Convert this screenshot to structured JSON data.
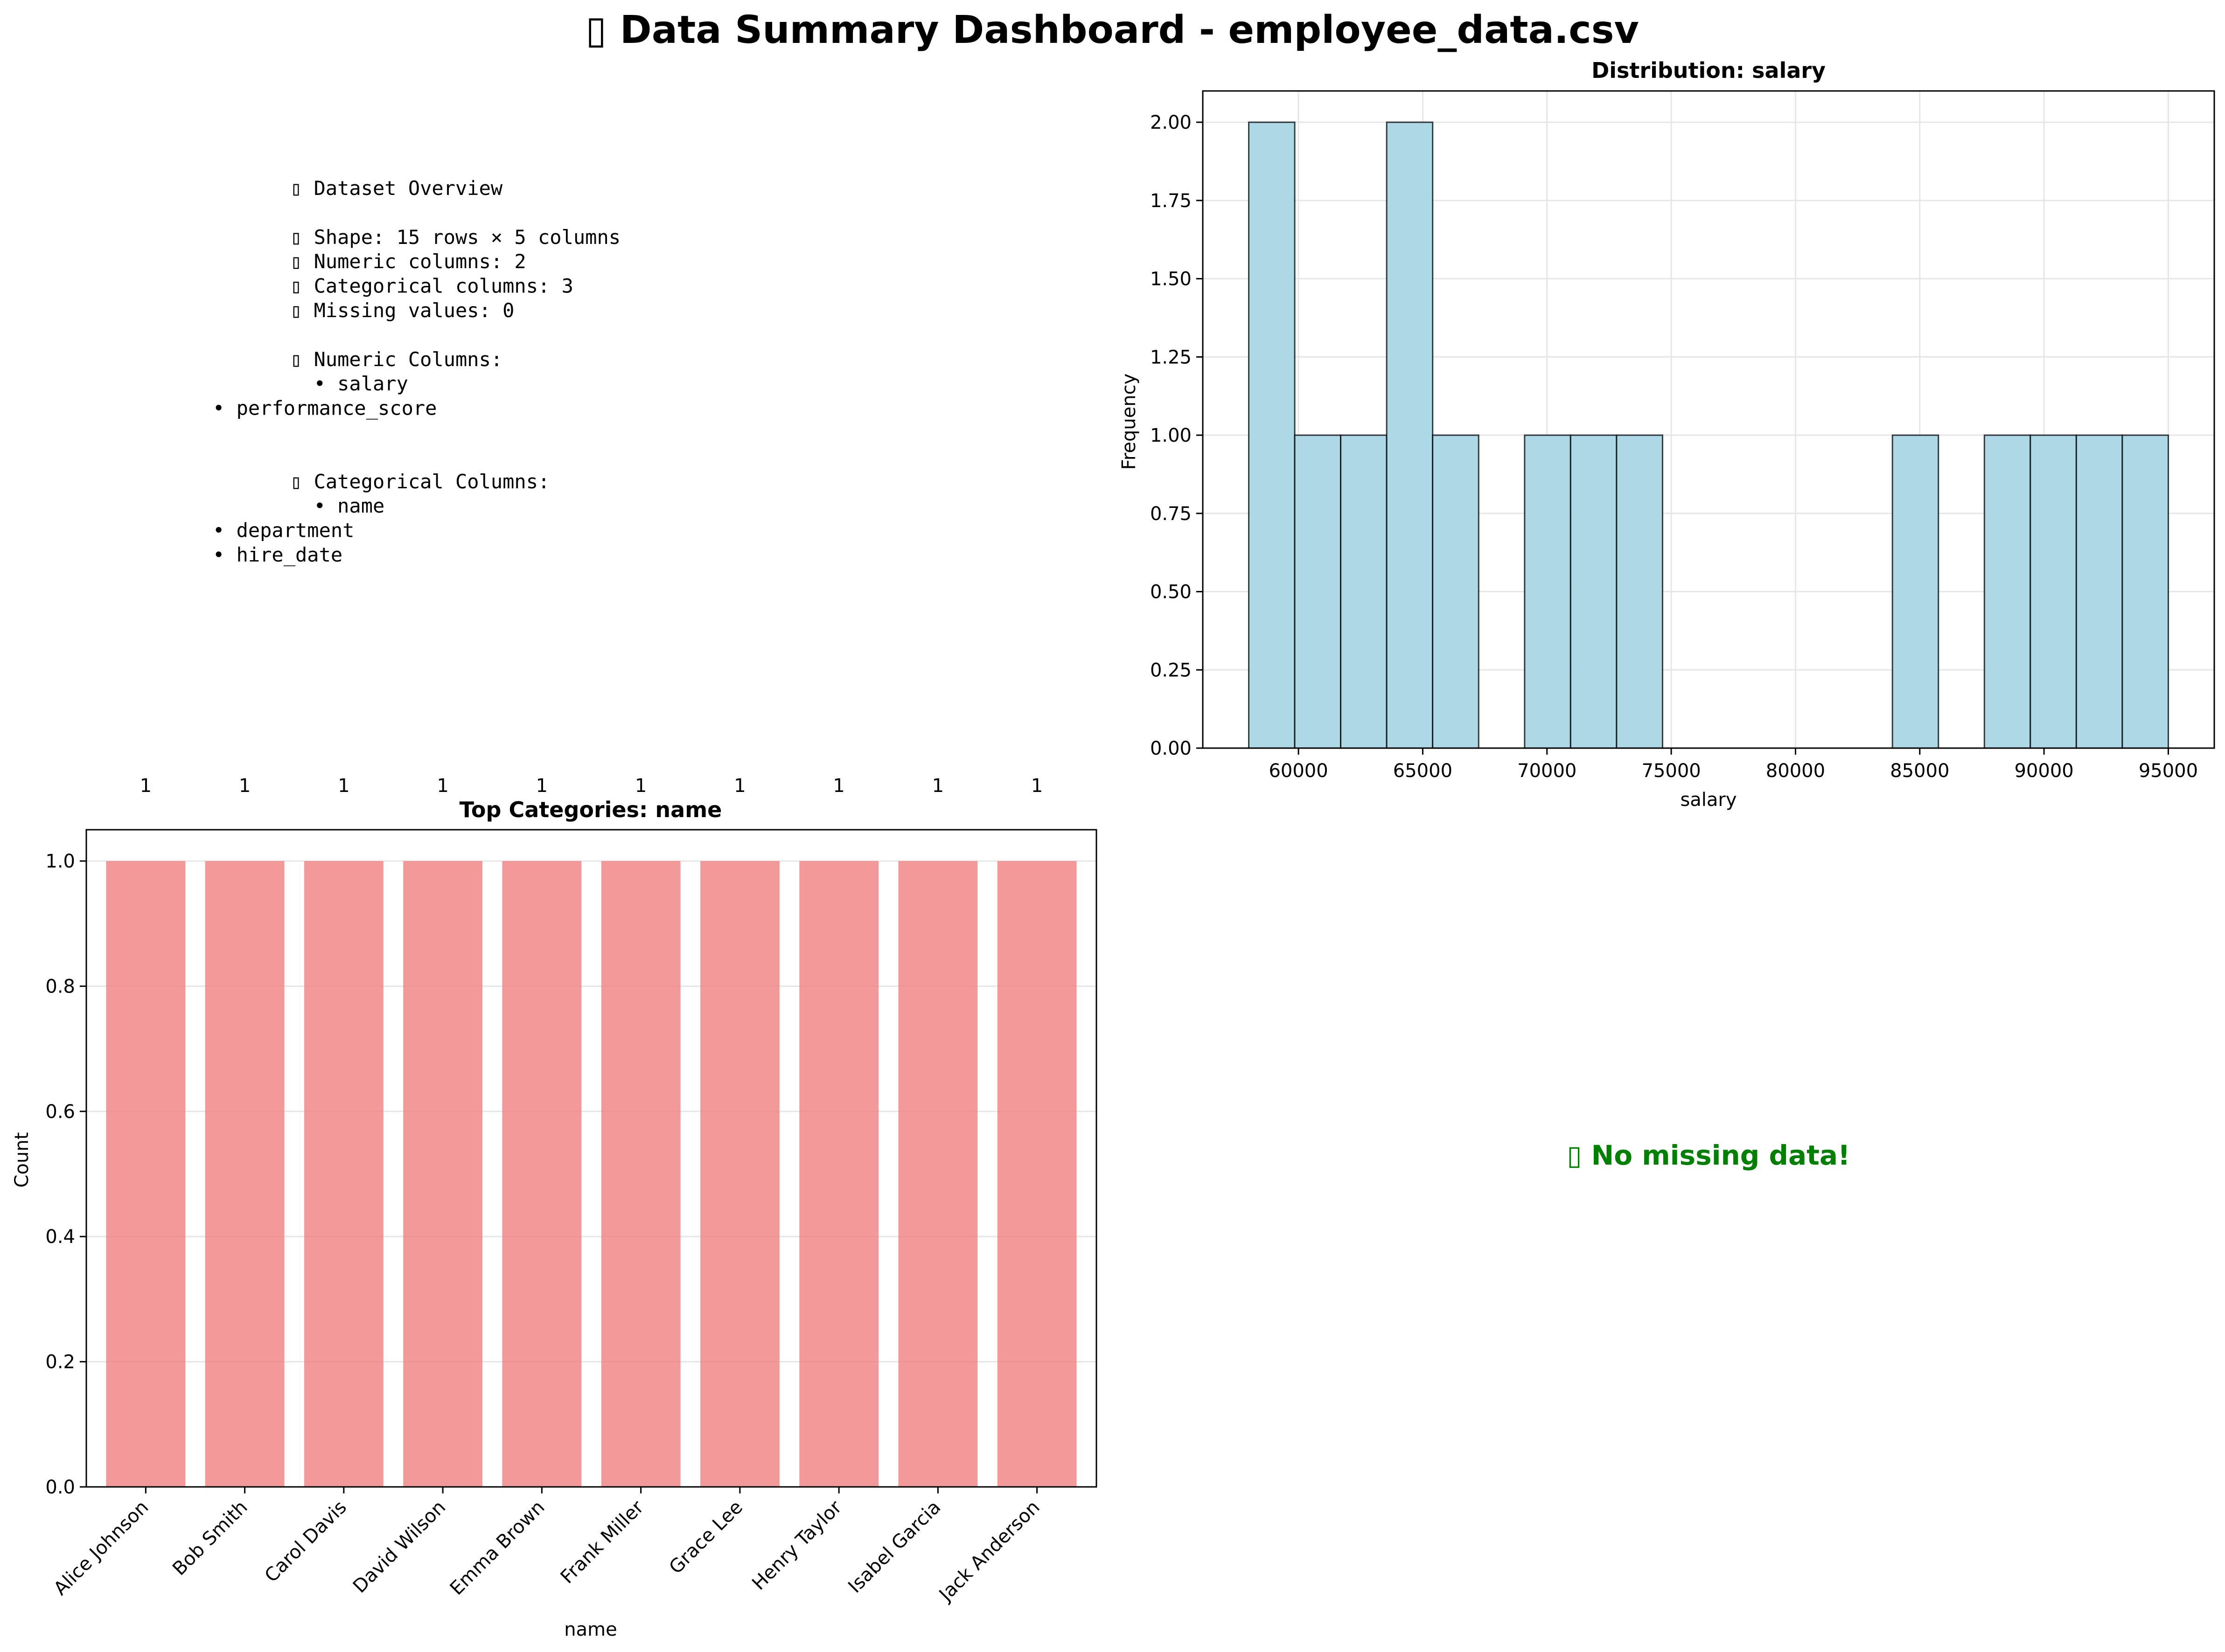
{
  "title": "▯ Data Summary Dashboard - employee_data.csv",
  "overview": {
    "lines": [
      {
        "text": "▯ Dataset Overview",
        "indent": 1
      },
      {
        "text": "",
        "indent": 0
      },
      {
        "text": "▯ Shape: 15 rows × 5 columns",
        "indent": 1
      },
      {
        "text": "▯ Numeric columns: 2",
        "indent": 1
      },
      {
        "text": "▯ Categorical columns: 3",
        "indent": 1
      },
      {
        "text": "▯ Missing values: 0",
        "indent": 1
      },
      {
        "text": "",
        "indent": 0
      },
      {
        "text": "▯ Numeric Columns:",
        "indent": 1
      },
      {
        "text": "  • salary",
        "indent": 1
      },
      {
        "text": "• performance_score",
        "indent": 0
      },
      {
        "text": "",
        "indent": 0
      },
      {
        "text": "",
        "indent": 0
      },
      {
        "text": "▯ Categorical Columns:",
        "indent": 1
      },
      {
        "text": "  • name",
        "indent": 1
      },
      {
        "text": "• department",
        "indent": 0
      },
      {
        "text": "• hire_date",
        "indent": 0
      }
    ]
  },
  "missing_message": "▯ No missing data!",
  "colors": {
    "hist_fill": "#add8e6",
    "bar_fill": "#f08080",
    "missing_text": "#008000",
    "grid": "#e6e6e6"
  },
  "chart_data": [
    {
      "type": "bar",
      "title": "Distribution: salary",
      "xlabel": "salary",
      "ylabel": "Frequency",
      "bin_edges": [
        58000,
        59850,
        61700,
        63550,
        65400,
        67250,
        69100,
        70950,
        72800,
        74650,
        76500,
        78350,
        80200,
        82050,
        83900,
        85750,
        87600,
        89450,
        91300,
        93150,
        95000
      ],
      "values": [
        2,
        1,
        1,
        2,
        1,
        0,
        1,
        1,
        1,
        0,
        0,
        0,
        0,
        0,
        1,
        0,
        1,
        1,
        1,
        1
      ],
      "xlim": [
        56150,
        96850
      ],
      "ylim": [
        0,
        2.1
      ],
      "xticks": [
        60000,
        65000,
        70000,
        75000,
        80000,
        85000,
        90000,
        95000
      ],
      "yticks": [
        "0.00",
        "0.25",
        "0.50",
        "0.75",
        "1.00",
        "1.25",
        "1.50",
        "1.75",
        "2.00"
      ],
      "grid": true
    },
    {
      "type": "bar",
      "title": "Top Categories: name",
      "xlabel": "name",
      "ylabel": "Count",
      "categories": [
        "Alice Johnson",
        "Bob Smith",
        "Carol Davis",
        "David Wilson",
        "Emma Brown",
        "Frank Miller",
        "Grace Lee",
        "Henry Taylor",
        "Isabel Garcia",
        "Jack Anderson"
      ],
      "values": [
        1,
        1,
        1,
        1,
        1,
        1,
        1,
        1,
        1,
        1
      ],
      "data_labels": [
        "1",
        "1",
        "1",
        "1",
        "1",
        "1",
        "1",
        "1",
        "1",
        "1"
      ],
      "ylim": [
        0,
        1.05
      ],
      "yticks": [
        "0.0",
        "0.2",
        "0.4",
        "0.6",
        "0.8",
        "1.0"
      ],
      "grid": true
    }
  ]
}
